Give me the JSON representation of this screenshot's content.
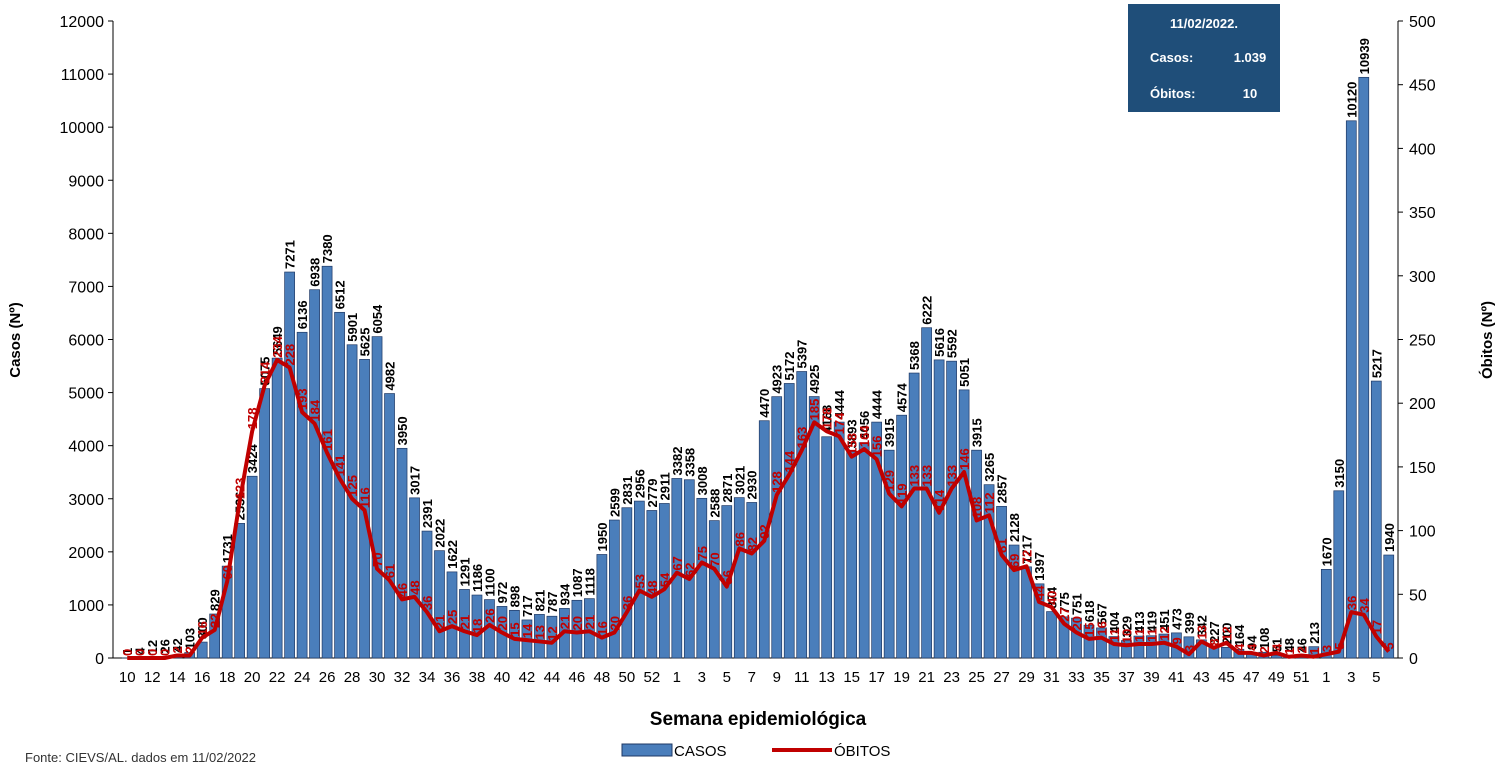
{
  "chart_data": {
    "type": "bar-line",
    "y_label": "Casos (Nº)",
    "y2_label": "Óbitos (Nº)",
    "x_label": "Semana epidemiológica",
    "source": "Fonte: CIEVS/AL, dados em 11/02/2022",
    "info_box": {
      "date": "11/02/2022.",
      "rows": [
        [
          "Casos:",
          "1.039"
        ],
        [
          "Óbitos:",
          "10"
        ]
      ]
    },
    "categories": [
      "10",
      null,
      "12",
      null,
      "14",
      null,
      "16",
      null,
      "18",
      null,
      "20",
      null,
      "22",
      null,
      "24",
      null,
      "26",
      null,
      "28",
      null,
      "30",
      null,
      "32",
      null,
      "34",
      null,
      "36",
      null,
      "38",
      null,
      "40",
      null,
      "42",
      null,
      "44",
      null,
      "46",
      null,
      "48",
      null,
      "50",
      null,
      "52",
      null,
      "1",
      null,
      "3",
      null,
      "5",
      null,
      "7",
      null,
      "9",
      null,
      "11",
      null,
      "13",
      null,
      "15",
      null,
      "17",
      null,
      "19",
      null,
      "21",
      null,
      "23",
      null,
      "25",
      null,
      "27",
      null,
      "29",
      null,
      "31",
      null,
      "33",
      null,
      "35",
      null,
      "37",
      null,
      "39",
      null,
      "41",
      null,
      "43",
      null,
      "45",
      null,
      "47",
      null,
      "49",
      null,
      "51",
      null,
      "1",
      null,
      "3",
      null,
      "5",
      null
    ],
    "series": [
      {
        "name": "CASOS",
        "type": "bar",
        "color": "#4a7ebb",
        "values": [
          1,
          4,
          12,
          26,
          42,
          103,
          300,
          829,
          1731,
          2536,
          3424,
          5075,
          5649,
          7271,
          6136,
          6938,
          7380,
          6512,
          5901,
          5625,
          6054,
          4982,
          3950,
          3017,
          2391,
          2022,
          1622,
          1291,
          1186,
          1100,
          972,
          898,
          717,
          821,
          787,
          934,
          1087,
          1118,
          1950,
          2599,
          2831,
          2956,
          2779,
          2911,
          3382,
          3358,
          3008,
          2588,
          2871,
          3021,
          2930,
          4470,
          4923,
          5172,
          5397,
          4925,
          4168,
          4444,
          3893,
          4056,
          4444,
          3915,
          4574,
          5368,
          6222,
          5616,
          5592,
          5051,
          3915,
          3265,
          2857,
          2128,
          1717,
          1397,
          874,
          775,
          751,
          618,
          567,
          404,
          329,
          413,
          419,
          451,
          473,
          399,
          342,
          227,
          200,
          164,
          94,
          108,
          51,
          48,
          46,
          213,
          1670,
          3150,
          10120,
          10939,
          5217,
          1940
        ]
      },
      {
        "name": "ÓBITOS",
        "type": "line",
        "axis": "y2",
        "color": "#c00000",
        "values": [
          0,
          0,
          0,
          0,
          2,
          2,
          16,
          22,
          60,
          123,
          178,
          214,
          234,
          228,
          193,
          184,
          161,
          141,
          125,
          116,
          70,
          61,
          46,
          48,
          36,
          21,
          25,
          21,
          18,
          26,
          20,
          15,
          14,
          13,
          12,
          21,
          20,
          21,
          16,
          20,
          36,
          53,
          48,
          54,
          67,
          62,
          75,
          70,
          56,
          86,
          82,
          92,
          128,
          144,
          163,
          185,
          178,
          174,
          158,
          164,
          156,
          129,
          119,
          133,
          133,
          114,
          133,
          146,
          108,
          112,
          81,
          69,
          72,
          44,
          40,
          27,
          20,
          15,
          16,
          11,
          10,
          11,
          11,
          12,
          9,
          3,
          13,
          8,
          12,
          4,
          4,
          2,
          4,
          1,
          2,
          1,
          3,
          5,
          36,
          34,
          17,
          5
        ]
      }
    ],
    "ylim": [
      0,
      12000
    ],
    "yticks": [
      0,
      1000,
      2000,
      3000,
      4000,
      5000,
      6000,
      7000,
      8000,
      9000,
      10000,
      11000,
      12000
    ],
    "y2lim": [
      0,
      500
    ],
    "y2ticks": [
      0,
      50,
      100,
      150,
      200,
      250,
      300,
      350,
      400,
      450,
      500
    ]
  }
}
